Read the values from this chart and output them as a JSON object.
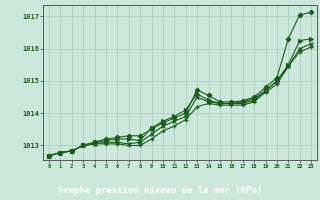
{
  "background_color": "#cce8dc",
  "plot_bg_color": "#cce8dc",
  "grid_color": "#aad0c0",
  "line_color": "#1a5c1a",
  "marker_color": "#1a5c1a",
  "xlabel": "Graphe pression niveau de la mer (hPa)",
  "xlabel_fontsize": 6.5,
  "xlim": [
    -0.5,
    23.5
  ],
  "ylim": [
    1012.55,
    1017.35
  ],
  "yticks": [
    1013,
    1014,
    1015,
    1016,
    1017
  ],
  "xticks": [
    0,
    1,
    2,
    3,
    4,
    5,
    6,
    7,
    8,
    9,
    10,
    11,
    12,
    13,
    14,
    15,
    16,
    17,
    18,
    19,
    20,
    21,
    22,
    23
  ],
  "series": [
    [
      1012.68,
      1012.78,
      1012.83,
      1013.0,
      1013.1,
      1013.2,
      1013.25,
      1013.3,
      1013.3,
      1013.5,
      1013.7,
      1013.85,
      1014.0,
      1014.72,
      1014.55,
      1014.35,
      1014.35,
      1014.38,
      1014.5,
      1014.8,
      1015.1,
      1016.3,
      1017.05,
      1017.12
    ],
    [
      1012.68,
      1012.78,
      1012.83,
      1013.0,
      1013.1,
      1013.15,
      1013.2,
      1013.2,
      1013.15,
      1013.55,
      1013.75,
      1013.9,
      1014.1,
      1014.6,
      1014.4,
      1014.3,
      1014.3,
      1014.35,
      1014.45,
      1014.7,
      1015.0,
      1015.5,
      1016.25,
      1016.3
    ],
    [
      1012.68,
      1012.78,
      1012.83,
      1013.0,
      1013.05,
      1013.1,
      1013.1,
      1013.05,
      1013.1,
      1013.35,
      1013.6,
      1013.75,
      1013.9,
      1014.5,
      1014.35,
      1014.3,
      1014.3,
      1014.3,
      1014.4,
      1014.7,
      1015.0,
      1015.45,
      1016.0,
      1016.15
    ],
    [
      1012.68,
      1012.78,
      1012.83,
      1013.0,
      1013.05,
      1013.05,
      1013.05,
      1013.0,
      1013.0,
      1013.2,
      1013.45,
      1013.6,
      1013.8,
      1014.2,
      1014.3,
      1014.25,
      1014.25,
      1014.25,
      1014.35,
      1014.65,
      1014.9,
      1015.45,
      1015.9,
      1016.05
    ]
  ],
  "footer_bg": "#1a5c1a",
  "footer_text_color": "#ffffff"
}
